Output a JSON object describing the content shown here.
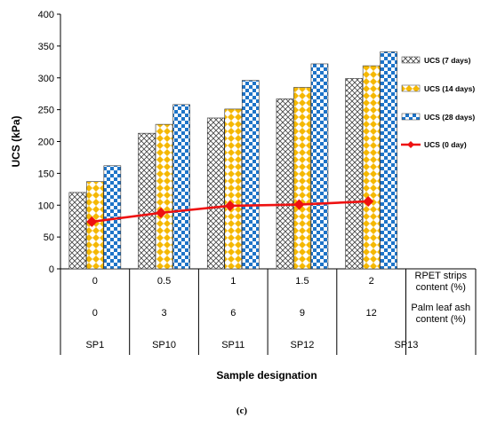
{
  "chart_data": {
    "type": "bar",
    "categories": [
      "0",
      "0.5",
      "1",
      "1.5",
      "2"
    ],
    "table_rows": [
      {
        "label": "RPET strips content (%)",
        "label_lines": [
          "RPET strips",
          "content (%)"
        ],
        "values": [
          "0",
          "0.5",
          "1",
          "1.5",
          "2"
        ]
      },
      {
        "label": "Palm leaf ash content (%)",
        "label_lines": [
          "Palm leaf ash",
          "content (%)"
        ],
        "values": [
          "0",
          "3",
          "6",
          "9",
          "12"
        ]
      },
      {
        "label": "",
        "label_lines": [],
        "values": [
          "SP1",
          "SP10",
          "SP11",
          "SP12",
          "SP13"
        ]
      }
    ],
    "series": [
      {
        "name": "UCS (7 days)",
        "kind": "bar",
        "pattern": "crosshatch",
        "values": [
          120,
          213,
          237,
          267,
          299
        ]
      },
      {
        "name": "UCS (14 days)",
        "kind": "bar",
        "pattern": "yellow-diamond",
        "values": [
          137,
          227,
          251,
          285,
          319
        ]
      },
      {
        "name": "UCS (28 days)",
        "kind": "bar",
        "pattern": "blue-checker",
        "values": [
          162,
          258,
          296,
          322,
          341
        ]
      },
      {
        "name": "UCS (0 day)",
        "kind": "line",
        "color": "#ee1111",
        "values": [
          74,
          88,
          99,
          101,
          106
        ]
      }
    ],
    "ylabel": "UCS (kPa)",
    "xlabel": "Sample designation",
    "ylim": [
      0,
      400
    ],
    "yticks": [
      0,
      50,
      100,
      150,
      200,
      250,
      300,
      350,
      400
    ],
    "legend_position": "right",
    "grid": false
  },
  "caption": "(c)"
}
